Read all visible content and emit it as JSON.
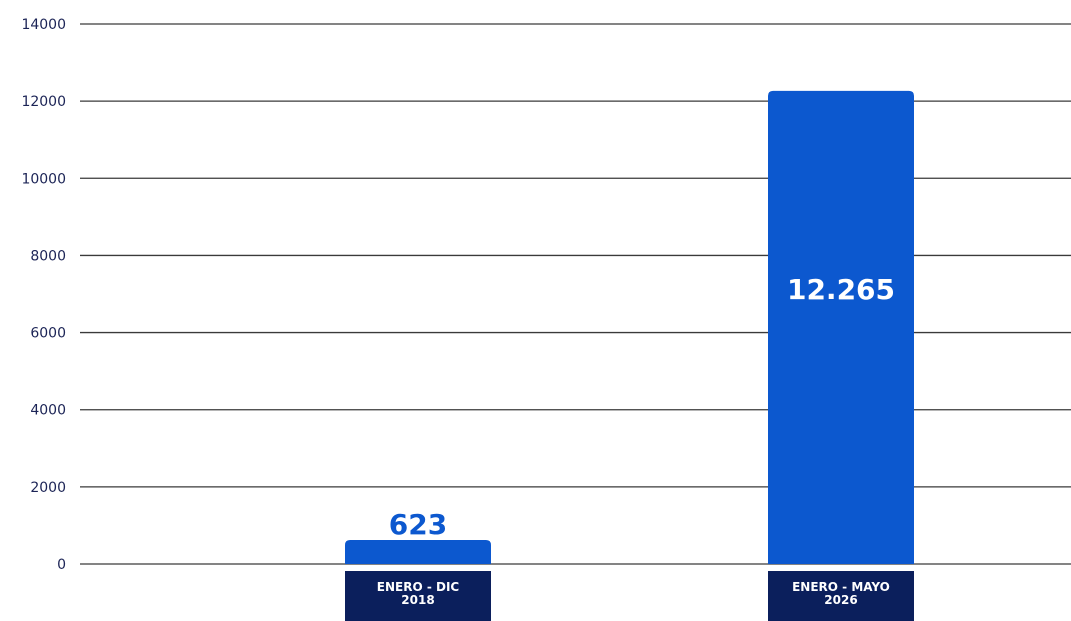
{
  "chart_data": {
    "type": "bar",
    "categories": [
      [
        "ENERO - DIC",
        "2018"
      ],
      [
        "ENERO - MAYO",
        "2026"
      ]
    ],
    "values": [
      623,
      12265
    ],
    "value_labels": [
      "623",
      "12.265"
    ],
    "ylim": [
      0,
      14000
    ],
    "yticks": [
      "0",
      "2000",
      "4000",
      "6000",
      "8000",
      "10000",
      "12000",
      "14000"
    ],
    "grid": true,
    "colors": {
      "bar": "#0c58cf",
      "category_box": "#0b1f5c",
      "grid": "#3a3a3a",
      "tick_text": "#1c2456",
      "value_outside": "#0c58cf",
      "value_inside": "#ffffff"
    }
  }
}
